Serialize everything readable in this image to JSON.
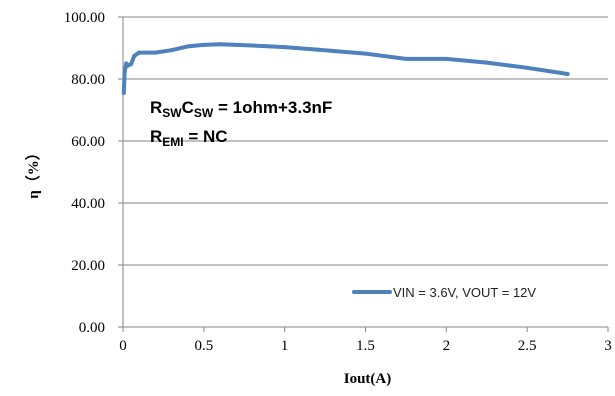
{
  "chart_data": {
    "type": "line",
    "xlabel": "Iout(A)",
    "ylabel": "η（%）",
    "xlim": [
      0,
      3
    ],
    "ylim": [
      0,
      100
    ],
    "x_ticks": [
      "0",
      "0.5",
      "1",
      "1.5",
      "2",
      "2.5",
      "3"
    ],
    "y_ticks": [
      "0.00",
      "20.00",
      "40.00",
      "60.00",
      "80.00",
      "100.00"
    ],
    "grid": "horizontal",
    "legend_position": "bottom-right",
    "series": [
      {
        "name": "VIN = 3.6V, VOUT = 12V",
        "color": "#4F81BD",
        "x": [
          0.005,
          0.01,
          0.02,
          0.03,
          0.05,
          0.07,
          0.1,
          0.15,
          0.2,
          0.3,
          0.4,
          0.5,
          0.6,
          0.7,
          0.8,
          1.0,
          1.2,
          1.5,
          1.75,
          2.0,
          2.25,
          2.5,
          2.75
        ],
        "y": [
          75.5,
          82.0,
          85.0,
          84.3,
          84.8,
          87.5,
          88.5,
          88.5,
          88.5,
          89.3,
          90.5,
          91.0,
          91.2,
          91.0,
          90.8,
          90.3,
          89.5,
          88.2,
          86.5,
          86.5,
          85.3,
          83.6,
          81.6
        ]
      }
    ],
    "annotations": [
      {
        "lines": [
          [
            {
              "t": "R",
              "sub": false
            },
            {
              "t": "SW",
              "sub": true
            },
            {
              "t": "C",
              "sub": false
            },
            {
              "t": "SW",
              "sub": true
            },
            {
              "t": " = 1ohm+3.3nF",
              "sub": false
            }
          ],
          [
            {
              "t": "R",
              "sub": false
            },
            {
              "t": "EMI",
              "sub": true
            },
            {
              "t": " = NC",
              "sub": false
            }
          ]
        ]
      }
    ]
  }
}
